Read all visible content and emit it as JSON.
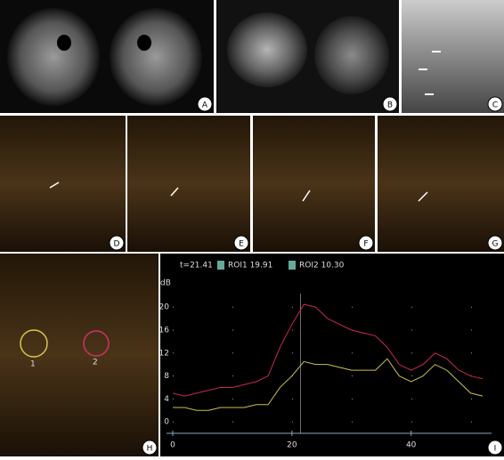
{
  "panels": [
    {
      "label": "A"
    },
    {
      "label": "B"
    },
    {
      "label": "C"
    },
    {
      "label": "D"
    },
    {
      "label": "E"
    },
    {
      "label": "F"
    },
    {
      "label": "G"
    },
    {
      "label": "H"
    },
    {
      "label": "I"
    }
  ],
  "roi_labels": [
    "1",
    "2"
  ],
  "chart_data": {
    "type": "line",
    "cursor": {
      "value": 21.41,
      "label": "t=21.41"
    },
    "y_label": "dB",
    "x": [
      0,
      2,
      4,
      6,
      8,
      10,
      12,
      14,
      16,
      18,
      20,
      22,
      24,
      26,
      28,
      30,
      32,
      34,
      36,
      38,
      40,
      42,
      44,
      46,
      48,
      50,
      52
    ],
    "series": [
      {
        "name": "ROI1 19.91",
        "color": "#c8265a",
        "values": [
          5,
          4.5,
          5,
          5.5,
          6,
          6,
          6.5,
          7,
          8,
          13,
          17,
          20.5,
          20,
          18,
          17,
          16,
          15.5,
          15,
          13,
          10,
          9,
          10,
          12,
          11,
          9,
          8,
          7.5
        ]
      },
      {
        "name": "ROI2 10.30",
        "color": "#c9c14a",
        "values": [
          2.5,
          2.5,
          2,
          2,
          2.5,
          2.5,
          2.5,
          3,
          3,
          6,
          8,
          10.5,
          10,
          10,
          9.5,
          9,
          9,
          9,
          11,
          8,
          7,
          8,
          10,
          9,
          7,
          5,
          4.5
        ]
      }
    ],
    "xlim": [
      0,
      52
    ],
    "ylim": [
      -2,
      25
    ],
    "xticks": [
      0,
      20,
      40
    ],
    "yticks": [
      0,
      4,
      8,
      12,
      16,
      20
    ],
    "grid": true
  }
}
